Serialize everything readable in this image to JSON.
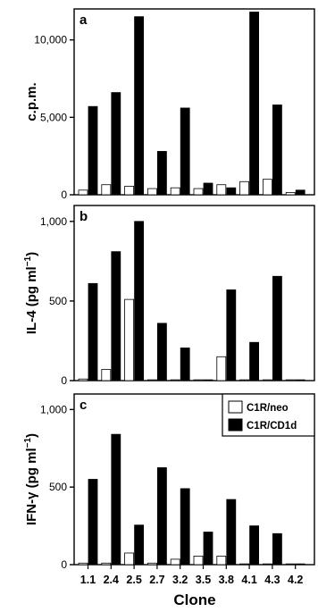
{
  "chart_data": [
    {
      "panel": "a",
      "type": "bar",
      "ylabel": "c.p.m.",
      "ylim": [
        0,
        12000
      ],
      "yticks": [
        0,
        5000,
        10000
      ],
      "ytick_labels": [
        "0",
        "5,000",
        "10,000"
      ],
      "categories": [
        "1.1",
        "2.4",
        "2.5",
        "2.7",
        "3.2",
        "3.5",
        "3.8",
        "4.1",
        "4.3",
        "4.2"
      ],
      "series": [
        {
          "name": "C1R/neo",
          "values": [
            300,
            650,
            550,
            400,
            450,
            400,
            650,
            850,
            1000,
            150
          ]
        },
        {
          "name": "C1R/CD1d",
          "values": [
            5700,
            6600,
            11500,
            2800,
            5600,
            750,
            450,
            11800,
            5800,
            300
          ]
        }
      ]
    },
    {
      "panel": "b",
      "type": "bar",
      "ylabel": "IL-4 (pg ml",
      "ylabel_sup": "−1",
      "ylabel_end": ")",
      "ylim": [
        0,
        1100
      ],
      "yticks": [
        0,
        500,
        1000
      ],
      "ytick_labels": [
        "0",
        "500",
        "1,000"
      ],
      "categories": [
        "1.1",
        "2.4",
        "2.5",
        "2.7",
        "3.2",
        "3.5",
        "3.8",
        "4.1",
        "4.3",
        "4.2"
      ],
      "series": [
        {
          "name": "C1R/neo",
          "values": [
            10,
            70,
            510,
            5,
            5,
            5,
            150,
            5,
            5,
            5
          ]
        },
        {
          "name": "C1R/CD1d",
          "values": [
            610,
            810,
            1000,
            360,
            205,
            5,
            570,
            240,
            655,
            5
          ]
        }
      ]
    },
    {
      "panel": "c",
      "type": "bar",
      "ylabel": "IFN-γ (pg ml",
      "ylabel_sup": "−1",
      "ylabel_end": ")",
      "ylim": [
        0,
        1100
      ],
      "yticks": [
        0,
        500,
        1000
      ],
      "ytick_labels": [
        "0",
        "500",
        "1,000"
      ],
      "categories": [
        "1.1",
        "2.4",
        "2.5",
        "2.7",
        "3.2",
        "3.5",
        "3.8",
        "4.1",
        "4.3",
        "4.2"
      ],
      "series": [
        {
          "name": "C1R/neo",
          "values": [
            10,
            10,
            75,
            10,
            35,
            55,
            55,
            5,
            5,
            5
          ]
        },
        {
          "name": "C1R/CD1d",
          "values": [
            550,
            840,
            255,
            625,
            490,
            210,
            420,
            250,
            200,
            5
          ]
        }
      ],
      "legend": {
        "placement": "top-right",
        "entries": [
          "C1R/neo",
          "C1R/CD1d"
        ]
      }
    }
  ],
  "xlabel": "Clone",
  "colors": {
    "C1R/neo": "#ffffff",
    "C1R/CD1d": "#000000",
    "axis": "#000000"
  }
}
